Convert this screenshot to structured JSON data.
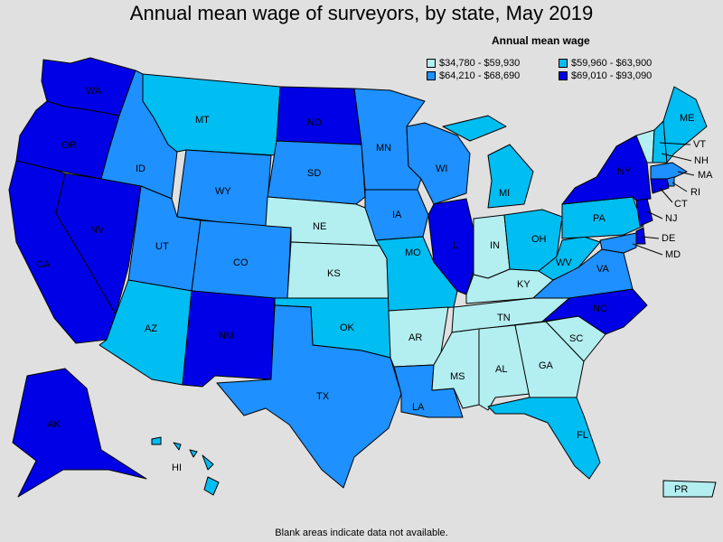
{
  "title": "Annual mean wage of surveyors, by state, May 2019",
  "legend": {
    "title": "Annual mean wage",
    "items": [
      {
        "range": "$34,780 - $59,930",
        "color": "#b3eef0"
      },
      {
        "range": "$59,960 - $63,900",
        "color": "#00bdf2"
      },
      {
        "range": "$64,210 - $68,690",
        "color": "#1e90ff"
      },
      {
        "range": "$69,010 - $93,090",
        "color": "#0000e6"
      }
    ]
  },
  "footnote": "Blank areas indicate data not available.",
  "states": [
    {
      "abbr": "WA",
      "tier": 3
    },
    {
      "abbr": "OR",
      "tier": 3
    },
    {
      "abbr": "CA",
      "tier": 3
    },
    {
      "abbr": "NV",
      "tier": 3
    },
    {
      "abbr": "ID",
      "tier": 2
    },
    {
      "abbr": "MT",
      "tier": 1
    },
    {
      "abbr": "WY",
      "tier": 2
    },
    {
      "abbr": "UT",
      "tier": 2
    },
    {
      "abbr": "CO",
      "tier": 2
    },
    {
      "abbr": "AZ",
      "tier": 1
    },
    {
      "abbr": "NM",
      "tier": 3
    },
    {
      "abbr": "ND",
      "tier": 3
    },
    {
      "abbr": "SD",
      "tier": 2
    },
    {
      "abbr": "NE",
      "tier": 0
    },
    {
      "abbr": "KS",
      "tier": 0
    },
    {
      "abbr": "OK",
      "tier": 1
    },
    {
      "abbr": "TX",
      "tier": 2
    },
    {
      "abbr": "MN",
      "tier": 2
    },
    {
      "abbr": "IA",
      "tier": 2
    },
    {
      "abbr": "MO",
      "tier": 1
    },
    {
      "abbr": "AR",
      "tier": 0
    },
    {
      "abbr": "LA",
      "tier": 2
    },
    {
      "abbr": "WI",
      "tier": 2
    },
    {
      "abbr": "IL",
      "tier": 3
    },
    {
      "abbr": "MI",
      "tier": 1
    },
    {
      "abbr": "IN",
      "tier": 0
    },
    {
      "abbr": "OH",
      "tier": 1
    },
    {
      "abbr": "KY",
      "tier": 0
    },
    {
      "abbr": "TN",
      "tier": 0
    },
    {
      "abbr": "MS",
      "tier": 0
    },
    {
      "abbr": "AL",
      "tier": 0
    },
    {
      "abbr": "GA",
      "tier": 0
    },
    {
      "abbr": "FL",
      "tier": 1
    },
    {
      "abbr": "SC",
      "tier": 0
    },
    {
      "abbr": "NC",
      "tier": 3
    },
    {
      "abbr": "VA",
      "tier": 2
    },
    {
      "abbr": "WV",
      "tier": 1
    },
    {
      "abbr": "PA",
      "tier": 1
    },
    {
      "abbr": "NY",
      "tier": 3
    },
    {
      "abbr": "VT",
      "tier": 0
    },
    {
      "abbr": "NH",
      "tier": 1
    },
    {
      "abbr": "ME",
      "tier": 1
    },
    {
      "abbr": "MA",
      "tier": 2
    },
    {
      "abbr": "RI",
      "tier": 2
    },
    {
      "abbr": "CT",
      "tier": 3
    },
    {
      "abbr": "NJ",
      "tier": 3
    },
    {
      "abbr": "DE",
      "tier": 3
    },
    {
      "abbr": "MD",
      "tier": 2
    },
    {
      "abbr": "AK",
      "tier": 3
    },
    {
      "abbr": "HI",
      "tier": 1
    },
    {
      "abbr": "PR",
      "tier": 0
    }
  ]
}
